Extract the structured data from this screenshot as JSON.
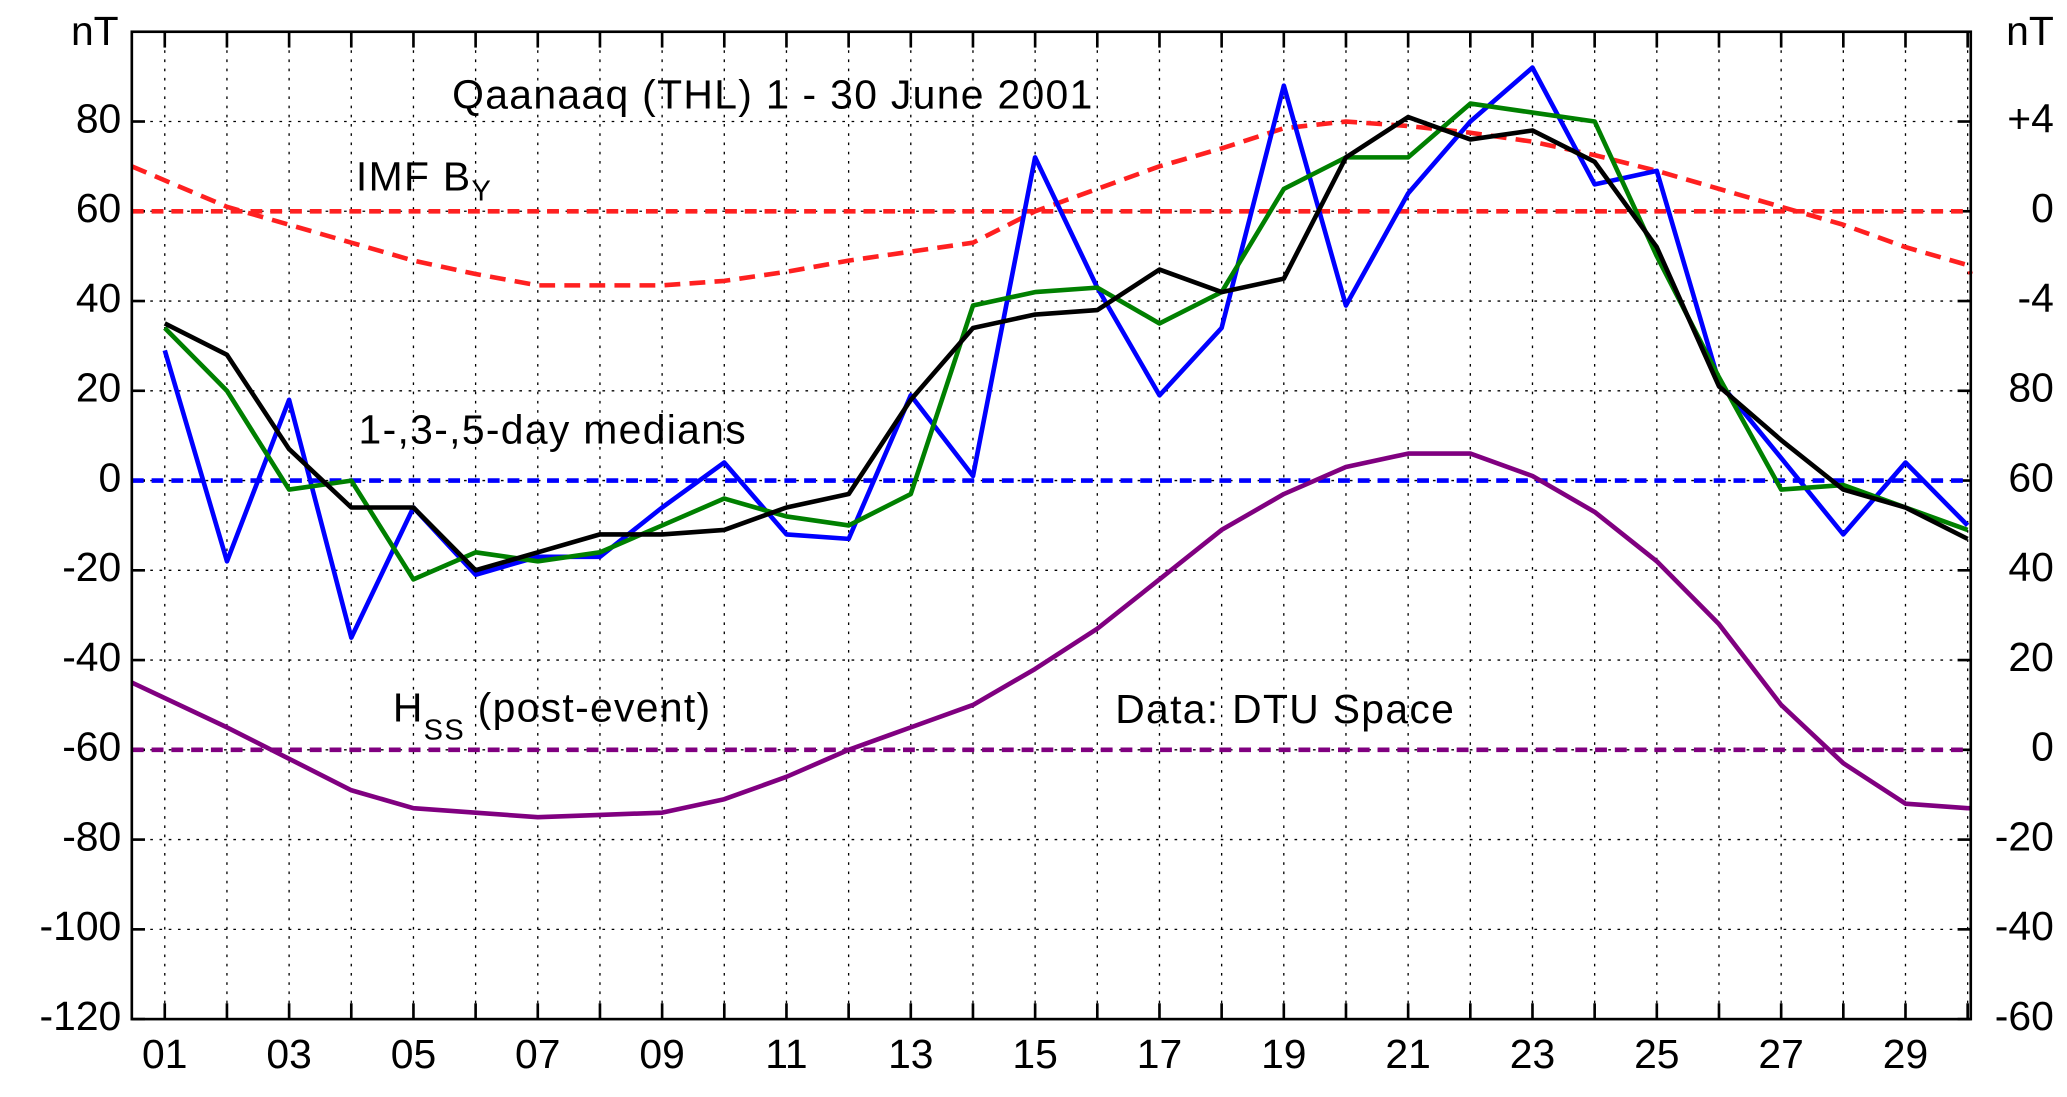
{
  "chart_data": {
    "type": "line",
    "title": "Qaanaaq (THL)  1 - 30 June 2001",
    "annotations": {
      "imf": {
        "text": "IMF B",
        "sub": "Y"
      },
      "medians": "1-,3-,5-day medians",
      "hss": {
        "text": "H",
        "sub": "SS",
        "rest": " (post-event)"
      },
      "source": "Data: DTU Space"
    },
    "y_unit": "nT",
    "y_right_unit": "nT",
    "xlim": [
      0.47,
      30.05
    ],
    "xticks": [
      {
        "value": 1,
        "label": "01"
      },
      {
        "value": 3,
        "label": "03"
      },
      {
        "value": 5,
        "label": "05"
      },
      {
        "value": 7,
        "label": "07"
      },
      {
        "value": 9,
        "label": "09"
      },
      {
        "value": 11,
        "label": "11"
      },
      {
        "value": 13,
        "label": "13"
      },
      {
        "value": 15,
        "label": "15"
      },
      {
        "value": 17,
        "label": "17"
      },
      {
        "value": 19,
        "label": "19"
      },
      {
        "value": 21,
        "label": "21"
      },
      {
        "value": 23,
        "label": "23"
      },
      {
        "value": 25,
        "label": "25"
      },
      {
        "value": 27,
        "label": "27"
      },
      {
        "value": 29,
        "label": "29"
      }
    ],
    "x_minor_ticks": [
      2,
      4,
      6,
      8,
      10,
      12,
      14,
      16,
      18,
      20,
      22,
      24,
      26,
      28,
      30
    ],
    "ylim": [
      -120,
      100
    ],
    "yticks": [
      -120,
      -100,
      -80,
      -60,
      -40,
      -20,
      0,
      20,
      40,
      60,
      80
    ],
    "y2lim": [
      -36,
      8
    ],
    "y2ticks": [
      {
        "value": 4,
        "label": "+4"
      },
      0,
      -4
    ],
    "y3lim": [
      -60,
      160
    ],
    "y3ticks": [
      80,
      60,
      40,
      20,
      0,
      -20,
      -40,
      -60
    ],
    "grid": true,
    "series": [
      {
        "color": "#ff2020",
        "axis": "y2",
        "dashed": true,
        "x": [
          0.47,
          2,
          3,
          4,
          5,
          6,
          7,
          8,
          9,
          10,
          11,
          12,
          13,
          14,
          15,
          16,
          17,
          18,
          19,
          20,
          21,
          22,
          23,
          24,
          25,
          26,
          27,
          28,
          29,
          30,
          30.05
        ],
        "values": [
          2,
          0.2,
          -0.6,
          -1.4,
          -2.2,
          -2.8,
          -3.3,
          -3.3,
          -3.3,
          -3.1,
          -2.7,
          -2.2,
          -1.8,
          -1.4,
          0,
          1,
          2,
          2.8,
          3.7,
          4,
          3.8,
          3.5,
          3.1,
          2.5,
          1.8,
          1,
          0.2,
          -0.6,
          -1.6,
          -2.4,
          -2.8
        ]
      },
      {
        "color": "#800080",
        "axis": "y3",
        "x": [
          0.47,
          2,
          3,
          4,
          5,
          6,
          7,
          8,
          9,
          10,
          11,
          12,
          13,
          14,
          15,
          16,
          17,
          18,
          19,
          20,
          21,
          22,
          23,
          24,
          25,
          26,
          27,
          28,
          29,
          30,
          30.05
        ],
        "values": [
          15,
          5,
          -2,
          -9,
          -13,
          -14,
          -15,
          -14.5,
          -14,
          -11,
          -6,
          0,
          5,
          10,
          18,
          27,
          38,
          49,
          57,
          63,
          66,
          66,
          61,
          53,
          42,
          28,
          10,
          -3,
          -12,
          -13,
          -13
        ]
      },
      {
        "color": "#0000ff",
        "axis": "y",
        "x": [
          1,
          2,
          3,
          4,
          5,
          6,
          7,
          8,
          9,
          10,
          11,
          12,
          13,
          14,
          15,
          16,
          17,
          18,
          19,
          20,
          21,
          22,
          23,
          24,
          25,
          26,
          27,
          28,
          29,
          30
        ],
        "values": [
          29,
          -18,
          18,
          -35,
          -6,
          -21,
          -17,
          -17,
          -6,
          4,
          -12,
          -13,
          19,
          1,
          72,
          43,
          19,
          34,
          88,
          39,
          64,
          80,
          92,
          66,
          69,
          22,
          5,
          -12,
          4,
          -10
        ]
      },
      {
        "color": "#008000",
        "axis": "y",
        "x": [
          1,
          2,
          3,
          4,
          5,
          6,
          7,
          8,
          9,
          10,
          11,
          12,
          13,
          14,
          15,
          16,
          17,
          18,
          19,
          20,
          21,
          22,
          23,
          24,
          25,
          26,
          27,
          28,
          29,
          30
        ],
        "values": [
          34,
          20,
          -2,
          0,
          -22,
          -16,
          -18,
          -16,
          -10,
          -4,
          -8,
          -10,
          -3,
          39,
          42,
          43,
          35,
          42,
          65,
          72,
          72,
          84,
          82,
          80,
          50,
          23,
          -2,
          -1,
          -6,
          -11
        ]
      },
      {
        "color": "#000000",
        "axis": "y",
        "x": [
          1,
          2,
          3,
          4,
          5,
          6,
          7,
          8,
          9,
          10,
          11,
          12,
          13,
          14,
          15,
          16,
          17,
          18,
          19,
          20,
          21,
          22,
          23,
          24,
          25,
          26,
          27,
          28,
          29,
          30
        ],
        "values": [
          35,
          28,
          7,
          -6,
          -6,
          -20,
          -16,
          -12,
          -12,
          -11,
          -6,
          -3,
          18,
          34,
          37,
          38,
          47,
          42,
          45,
          72,
          81,
          76,
          78,
          71,
          52,
          21,
          9,
          -2,
          -6,
          -13
        ]
      }
    ]
  }
}
